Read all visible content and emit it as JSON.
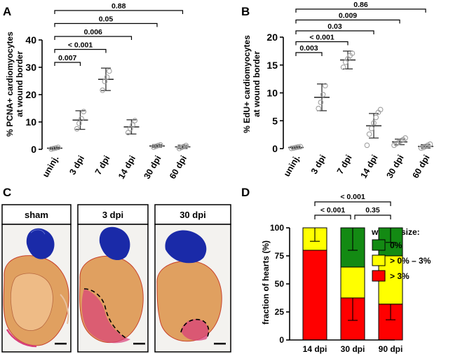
{
  "panels": {
    "A": "A",
    "B": "B",
    "C": "C",
    "D": "D"
  },
  "chart_data": [
    {
      "id": "A",
      "type": "scatter",
      "ylabel": "% PCNA+ cardiomyocytes at wound border",
      "ylabel_line1": "% PCNA+ cardiomyocytes",
      "ylabel_line2": "at wound border",
      "ylim": [
        0,
        40
      ],
      "yticks": [
        0,
        10,
        20,
        30,
        40
      ],
      "categories": [
        "uninj.",
        "3 dpi",
        "7 dpi",
        "14 dpi",
        "30 dpi",
        "60 dpi"
      ],
      "mean": [
        0.4,
        10.7,
        25.6,
        8.2,
        1.2,
        0.9
      ],
      "sd": [
        0.4,
        3.4,
        4.1,
        2.6,
        0.5,
        0.6
      ],
      "points": [
        [
          0.1,
          0.3,
          0.5,
          0.7
        ],
        [
          7.5,
          9.5,
          11.2,
          13.8
        ],
        [
          21.6,
          24.8,
          26.4,
          28.6
        ],
        [
          6.1,
          7.6,
          8.9,
          10.5
        ],
        [
          0.8,
          1.1,
          1.4,
          1.6
        ],
        [
          0.3,
          0.7,
          1.0,
          1.4
        ]
      ],
      "comparisons": [
        {
          "from": 0,
          "to": 1,
          "label": "0.007"
        },
        {
          "from": 0,
          "to": 2,
          "label": "< 0.001"
        },
        {
          "from": 0,
          "to": 3,
          "label": "0.006"
        },
        {
          "from": 0,
          "to": 4,
          "label": "0.05"
        },
        {
          "from": 0,
          "to": 5,
          "label": "0.88"
        }
      ]
    },
    {
      "id": "B",
      "type": "scatter",
      "ylabel": "% EdU+ cardiomyocytes at wound border",
      "ylabel_line1": "% EdU+ cardiomyocytes",
      "ylabel_line2": "at wound border",
      "ylim": [
        0,
        20
      ],
      "yticks": [
        0,
        5,
        10,
        15,
        20
      ],
      "categories": [
        "uninj.",
        "3 dpi",
        "7 dpi",
        "14 dpi",
        "30 dpi",
        "60 dpi"
      ],
      "mean": [
        0.2,
        9.2,
        15.9,
        4.1,
        1.2,
        0.4
      ],
      "sd": [
        0.2,
        2.4,
        1.6,
        2.2,
        0.5,
        0.3
      ],
      "points": [
        [
          0.05,
          0.1,
          0.2,
          0.3,
          0.35
        ],
        [
          7.2,
          8.3,
          9.7,
          11.3
        ],
        [
          14.6,
          15.5,
          16.1,
          16.7,
          17.1
        ],
        [
          0.6,
          2.6,
          3.6,
          4.6,
          5.6,
          6.5,
          7.0
        ],
        [
          0.6,
          0.9,
          1.1,
          1.4,
          1.6,
          1.9
        ],
        [
          0.1,
          0.2,
          0.4,
          0.6,
          0.8
        ]
      ],
      "comparisons": [
        {
          "from": 0,
          "to": 1,
          "label": "0.003"
        },
        {
          "from": 0,
          "to": 2,
          "label": "< 0.001"
        },
        {
          "from": 0,
          "to": 3,
          "label": "0.03"
        },
        {
          "from": 0,
          "to": 4,
          "label": "0.009"
        },
        {
          "from": 0,
          "to": 5,
          "label": "0.86"
        }
      ]
    },
    {
      "id": "D",
      "type": "bar",
      "stacked": true,
      "ylabel": "fraction of hearts (%)",
      "ylim": [
        0,
        100
      ],
      "yticks": [
        0,
        25,
        50,
        75,
        100
      ],
      "categories": [
        "14 dpi",
        "30 dpi",
        "90 dpi"
      ],
      "legend_title": "wound size:",
      "series": [
        {
          "name": "> 3%",
          "color": "#ff0000",
          "values": [
            80,
            37.5,
            32
          ],
          "err": [
            0,
            20,
            14
          ]
        },
        {
          "name": "> 0% – 3%",
          "color": "#ffff00",
          "values": [
            20,
            27.5,
            43
          ],
          "err": [
            12,
            0,
            0
          ]
        },
        {
          "name": "0%",
          "color": "#138a13",
          "values": [
            0,
            35,
            25
          ],
          "err": [
            0,
            20,
            13
          ]
        }
      ],
      "comparisons": [
        {
          "from": 0,
          "to": 1,
          "label": "< 0.001"
        },
        {
          "from": 1,
          "to": 2,
          "label": "0.35"
        },
        {
          "from": 0,
          "to": 2,
          "label": "< 0.001"
        }
      ]
    }
  ],
  "histology": {
    "labels": [
      "sham",
      "3 dpi",
      "30 dpi"
    ]
  },
  "colors": {
    "ventricle": "#e0a060",
    "clot": "#1a2aa8",
    "injury": "#d8407a",
    "marker": "#a0a0a0"
  }
}
